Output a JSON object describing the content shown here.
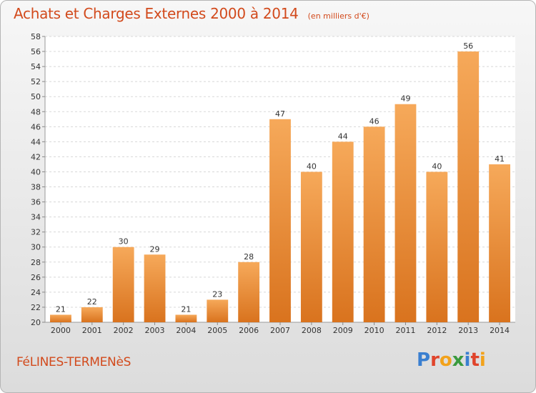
{
  "header": {
    "title": "Achats et Charges Externes 2000 à 2014",
    "subtitle": "(en milliers d'€)"
  },
  "footer": {
    "commune": "FéLINES-TERMENèS",
    "logo_text": "Proxiti"
  },
  "colors": {
    "title": "#d24a1c",
    "bar_light": "#f6a95a",
    "bar_dark": "#d9731e",
    "logo_letters": [
      "#3a7fd0",
      "#e0442b",
      "#f2a21b",
      "#3a9a3e",
      "#3a7fd0",
      "#e0442b",
      "#f2a21b"
    ]
  },
  "chart_data": {
    "type": "bar",
    "categories": [
      "2000",
      "2001",
      "2002",
      "2003",
      "2004",
      "2005",
      "2006",
      "2007",
      "2008",
      "2009",
      "2010",
      "2011",
      "2012",
      "2013",
      "2014"
    ],
    "values": [
      21,
      22,
      30,
      29,
      21,
      23,
      28,
      47,
      40,
      44,
      46,
      49,
      40,
      56,
      41
    ],
    "value_labels": [
      "21",
      "22",
      "30",
      "29",
      "21",
      "23",
      "28",
      "47",
      "40",
      "44",
      "46",
      "49",
      "40",
      "56",
      "41"
    ],
    "title": "Achats et Charges Externes 2000 à 2014",
    "xlabel": "",
    "ylabel": "",
    "ylim": [
      20,
      58
    ],
    "yticks": [
      20,
      22,
      24,
      26,
      28,
      30,
      32,
      34,
      36,
      38,
      40,
      42,
      44,
      46,
      48,
      50,
      52,
      54,
      56,
      58
    ],
    "grid": true,
    "legend": "none"
  }
}
